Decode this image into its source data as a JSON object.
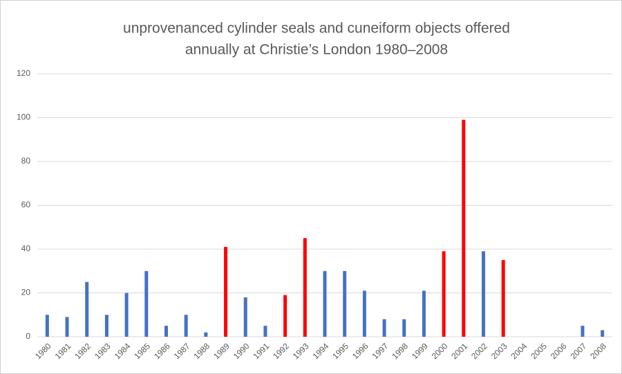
{
  "chart_data": {
    "type": "bar",
    "title": [
      "unprovenanced cylinder seals and cuneiform objects offered",
      "annually at Christie’s London 1980–2008"
    ],
    "categories": [
      "1980",
      "1981",
      "1982",
      "1983",
      "1984",
      "1985",
      "1986",
      "1987",
      "1988",
      "1989",
      "1990",
      "1991",
      "1992",
      "1993",
      "1994",
      "1995",
      "1996",
      "1997",
      "1998",
      "1999",
      "2000",
      "2001",
      "2002",
      "2003",
      "2004",
      "2005",
      "2006",
      "2007",
      "2008"
    ],
    "values": [
      10,
      9,
      25,
      10,
      20,
      30,
      5,
      10,
      2,
      41,
      18,
      5,
      19,
      45,
      30,
      30,
      21,
      8,
      8,
      21,
      39,
      99,
      39,
      35,
      0,
      0,
      0,
      5,
      3
    ],
    "colors": [
      "#4472c4",
      "#4472c4",
      "#4472c4",
      "#4472c4",
      "#4472c4",
      "#4472c4",
      "#4472c4",
      "#4472c4",
      "#4472c4",
      "#ff0000",
      "#4472c4",
      "#4472c4",
      "#ff0000",
      "#ff0000",
      "#4472c4",
      "#4472c4",
      "#4472c4",
      "#4472c4",
      "#4472c4",
      "#4472c4",
      "#ff0000",
      "#ff0000",
      "#4472c4",
      "#ff0000",
      "#4472c4",
      "#4472c4",
      "#4472c4",
      "#4472c4",
      "#4472c4"
    ],
    "ylim": [
      0,
      120
    ],
    "yticks": [
      0,
      20,
      40,
      60,
      80,
      100,
      120
    ],
    "grid": true
  }
}
